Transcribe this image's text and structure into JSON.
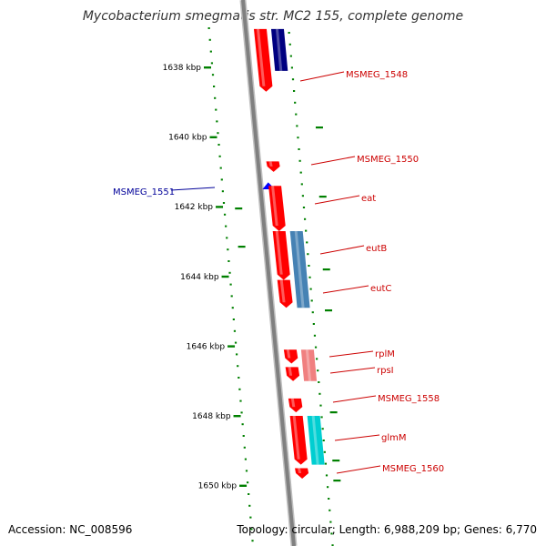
{
  "title": "Mycobacterium smegmatis str. MC2 155, complete genome",
  "footer": {
    "accession": "Accession: NC_008596",
    "summary": "Topology: circular; Length: 6,988,209 bp; Genes: 6,770"
  },
  "ticks": [
    {
      "label": "1638 kbp",
      "kbp": 1638
    },
    {
      "label": "1640 kbp",
      "kbp": 1640
    },
    {
      "label": "1642 kbp",
      "kbp": 1642
    },
    {
      "label": "1644 kbp",
      "kbp": 1644
    },
    {
      "label": "1646 kbp",
      "kbp": 1646
    },
    {
      "label": "1648 kbp",
      "kbp": 1648
    },
    {
      "label": "1650 kbp",
      "kbp": 1650
    }
  ],
  "genes": [
    {
      "label": "MSMEG_1548",
      "strand": "forward",
      "start_kbp": 1636.9,
      "end_kbp": 1638.7,
      "color": "#ff0000",
      "feature_color": "#000080",
      "feature_start_kbp": 1636.9,
      "feature_end_kbp": 1638.1
    },
    {
      "label": "MSMEG_1550",
      "strand": "forward",
      "start_kbp": 1640.7,
      "end_kbp": 1641.0,
      "color": "#ff0000"
    },
    {
      "label": "MSMEG_1551",
      "strand": "reverse",
      "start_kbp": 1641.3,
      "end_kbp": 1641.5,
      "color": "#0000ff"
    },
    {
      "label": "eat",
      "strand": "forward",
      "start_kbp": 1641.4,
      "end_kbp": 1642.7,
      "color": "#ff0000"
    },
    {
      "label": "eutB",
      "strand": "forward",
      "start_kbp": 1642.7,
      "end_kbp": 1644.1,
      "color": "#ff0000",
      "feature_color": "#4682b4",
      "feature_start_kbp": 1642.7,
      "feature_end_kbp": 1644.9
    },
    {
      "label": "eutC",
      "strand": "forward",
      "start_kbp": 1644.1,
      "end_kbp": 1644.9,
      "color": "#ff0000"
    },
    {
      "label": "rplM",
      "strand": "forward",
      "start_kbp": 1646.1,
      "end_kbp": 1646.5,
      "color": "#ff0000",
      "feature_color": "#f08080",
      "feature_start_kbp": 1646.1,
      "feature_end_kbp": 1647.0
    },
    {
      "label": "rpsI",
      "strand": "forward",
      "start_kbp": 1646.6,
      "end_kbp": 1647.0,
      "color": "#ff0000"
    },
    {
      "label": "MSMEG_1558",
      "strand": "forward",
      "start_kbp": 1647.5,
      "end_kbp": 1647.9,
      "color": "#ff0000"
    },
    {
      "label": "glmM",
      "strand": "forward",
      "start_kbp": 1648.0,
      "end_kbp": 1649.4,
      "color": "#ff0000",
      "feature_color": "#00ced1",
      "feature_start_kbp": 1648.0,
      "feature_end_kbp": 1649.4
    },
    {
      "label": "MSMEG_1560",
      "strand": "forward",
      "start_kbp": 1649.5,
      "end_kbp": 1649.8,
      "color": "#ff0000"
    }
  ],
  "colors": {
    "backbone": "#808080",
    "gc_dots": "#008000",
    "forward_label": "#cc0000",
    "reverse_label": "#000099"
  }
}
